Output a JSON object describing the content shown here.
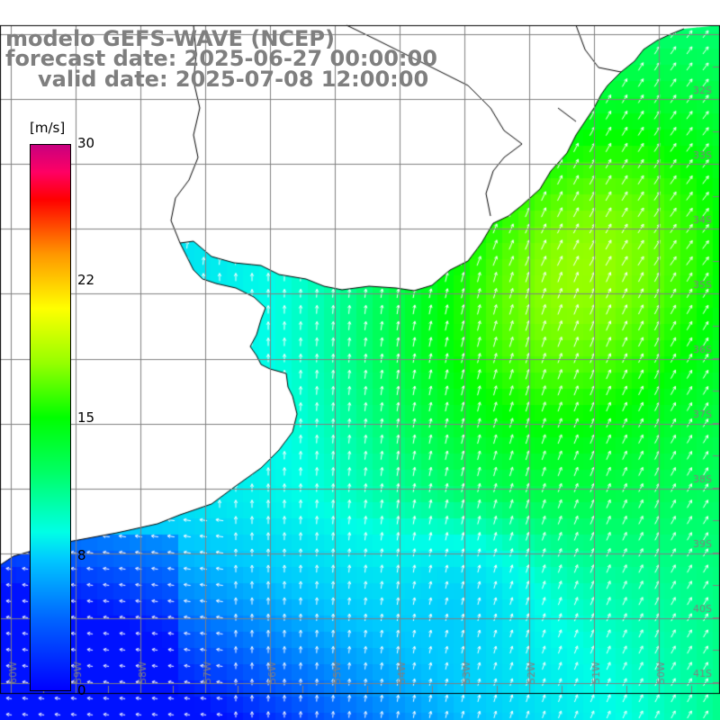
{
  "title": {
    "line1": "modelo GEFS-WAVE (NCEP)",
    "line2": "forecast date: 2025-06-27 00:00:00",
    "line3": "valid date: 2025-07-08 12:00:00"
  },
  "colorbar": {
    "units": "[m/s]",
    "ticks": [
      "30",
      "22",
      "15",
      "8",
      "0"
    ],
    "values": [
      30,
      22,
      15,
      8,
      0
    ],
    "range": [
      0,
      30
    ],
    "colors": [
      "#0000ff",
      "#0064ff",
      "#00c8ff",
      "#00ffe6",
      "#00ff64",
      "#00ff00",
      "#96ff00",
      "#ffff00",
      "#ff9600",
      "#ff0000",
      "#ff0064",
      "#c8007f"
    ]
  },
  "map": {
    "lat_labels": [
      "32S",
      "33S",
      "34S",
      "35S",
      "36S",
      "37S",
      "38S",
      "39S",
      "40S",
      "41S"
    ],
    "lon_labels": [
      "60W",
      "59W",
      "58W",
      "57W",
      "56W",
      "55W",
      "54W",
      "53W",
      "52W",
      "51W",
      "50W"
    ],
    "colors": {
      "land": "#ffffff",
      "coast": "#000000",
      "grid": "#808080",
      "arrow": "#ffffff",
      "label": "#808080"
    }
  }
}
